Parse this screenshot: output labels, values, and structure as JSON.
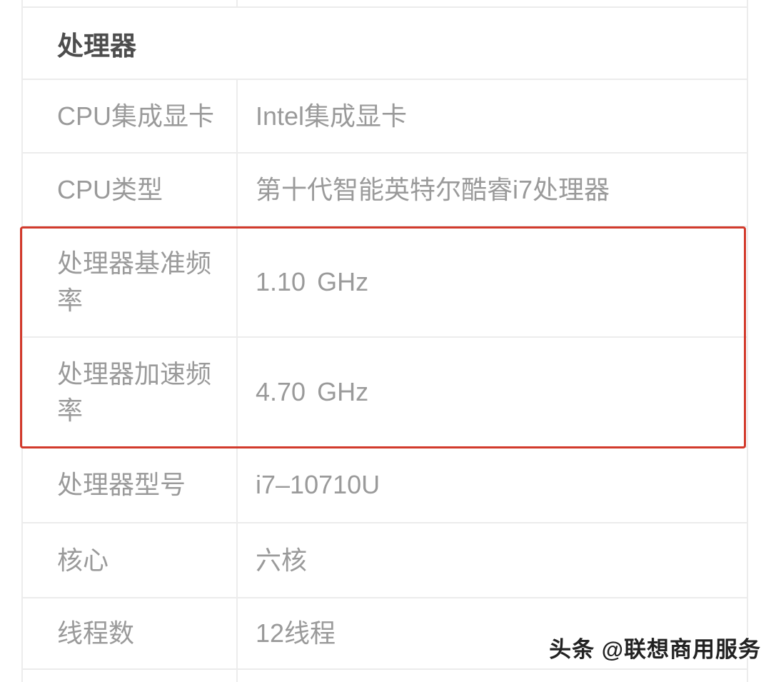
{
  "section": {
    "title": "处理器"
  },
  "table": {
    "rows": [
      {
        "label": "CPU集成显卡",
        "value": "Intel集成显卡"
      },
      {
        "label": "CPU类型",
        "value": "第十代智能英特尔酷睿i7处理器"
      },
      {
        "label": "处理器基准频率",
        "value": "1.10 GHz"
      },
      {
        "label": "处理器加速频率",
        "value": "4.70 GHz"
      },
      {
        "label": "处理器型号",
        "value": "i7–10710U"
      },
      {
        "label": "核心",
        "value": "六核"
      },
      {
        "label": "线程数",
        "value": "12线程"
      }
    ]
  },
  "annotation": {
    "shape": "red-highlight-box",
    "color": "#d23a2c"
  },
  "watermark": {
    "text": "头条 @联想商用服务"
  },
  "colors": {
    "grid_line": "#ececec",
    "label_text": "#9a9a9a",
    "value_text": "#9a9a9a",
    "header_text": "#4d4d4d"
  }
}
